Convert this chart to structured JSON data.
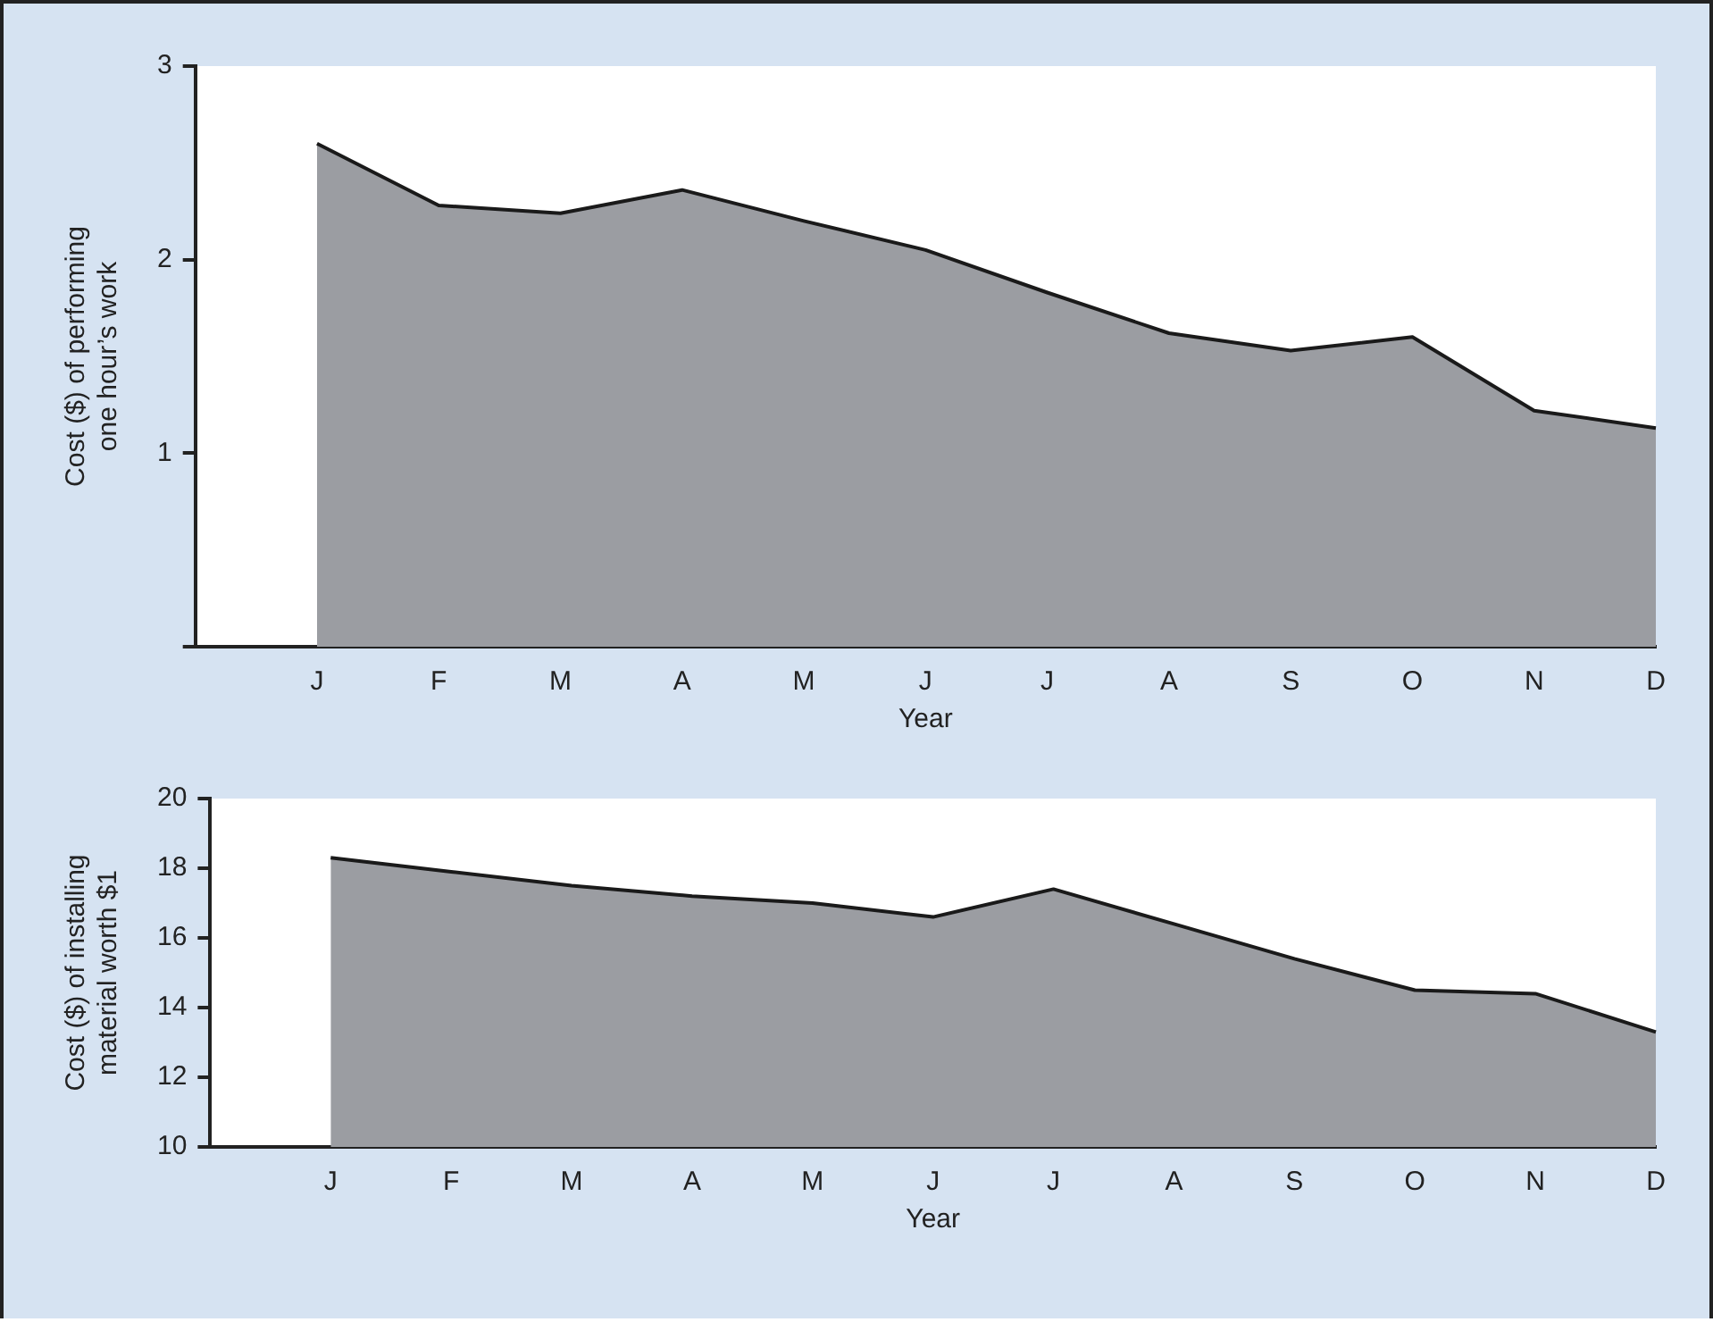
{
  "chart_data": [
    {
      "type": "area",
      "categories": [
        null,
        "J",
        "F",
        "M",
        "A",
        "M",
        "J",
        "J",
        "A",
        "S",
        "O",
        "N",
        "D"
      ],
      "values": [
        null,
        2.6,
        2.28,
        2.24,
        2.36,
        2.2,
        2.05,
        1.83,
        1.62,
        1.53,
        1.6,
        1.22,
        1.13
      ],
      "color": "#9b9da2",
      "xlabel": "Year",
      "ylabel": "Cost ($) of performing one hour’s work",
      "ylim": [
        0,
        3
      ],
      "yticks": [
        {
          "value": 0,
          "label": null
        },
        1,
        2,
        3
      ],
      "grid": false,
      "legend": false
    },
    {
      "type": "area",
      "categories": [
        null,
        "J",
        "F",
        "M",
        "A",
        "M",
        "J",
        "J",
        "A",
        "S",
        "O",
        "N",
        "D"
      ],
      "values": [
        null,
        18.3,
        17.9,
        17.5,
        17.2,
        17.0,
        16.6,
        17.4,
        16.4,
        15.4,
        14.5,
        14.4,
        13.3
      ],
      "color": "#9b9da2",
      "xlabel": "Year",
      "ylabel": "Cost ($) of installing material worth $1",
      "ylim": [
        10,
        20
      ],
      "yticks": [
        10,
        12,
        14,
        16,
        18,
        20
      ],
      "grid": false,
      "legend": false
    }
  ]
}
